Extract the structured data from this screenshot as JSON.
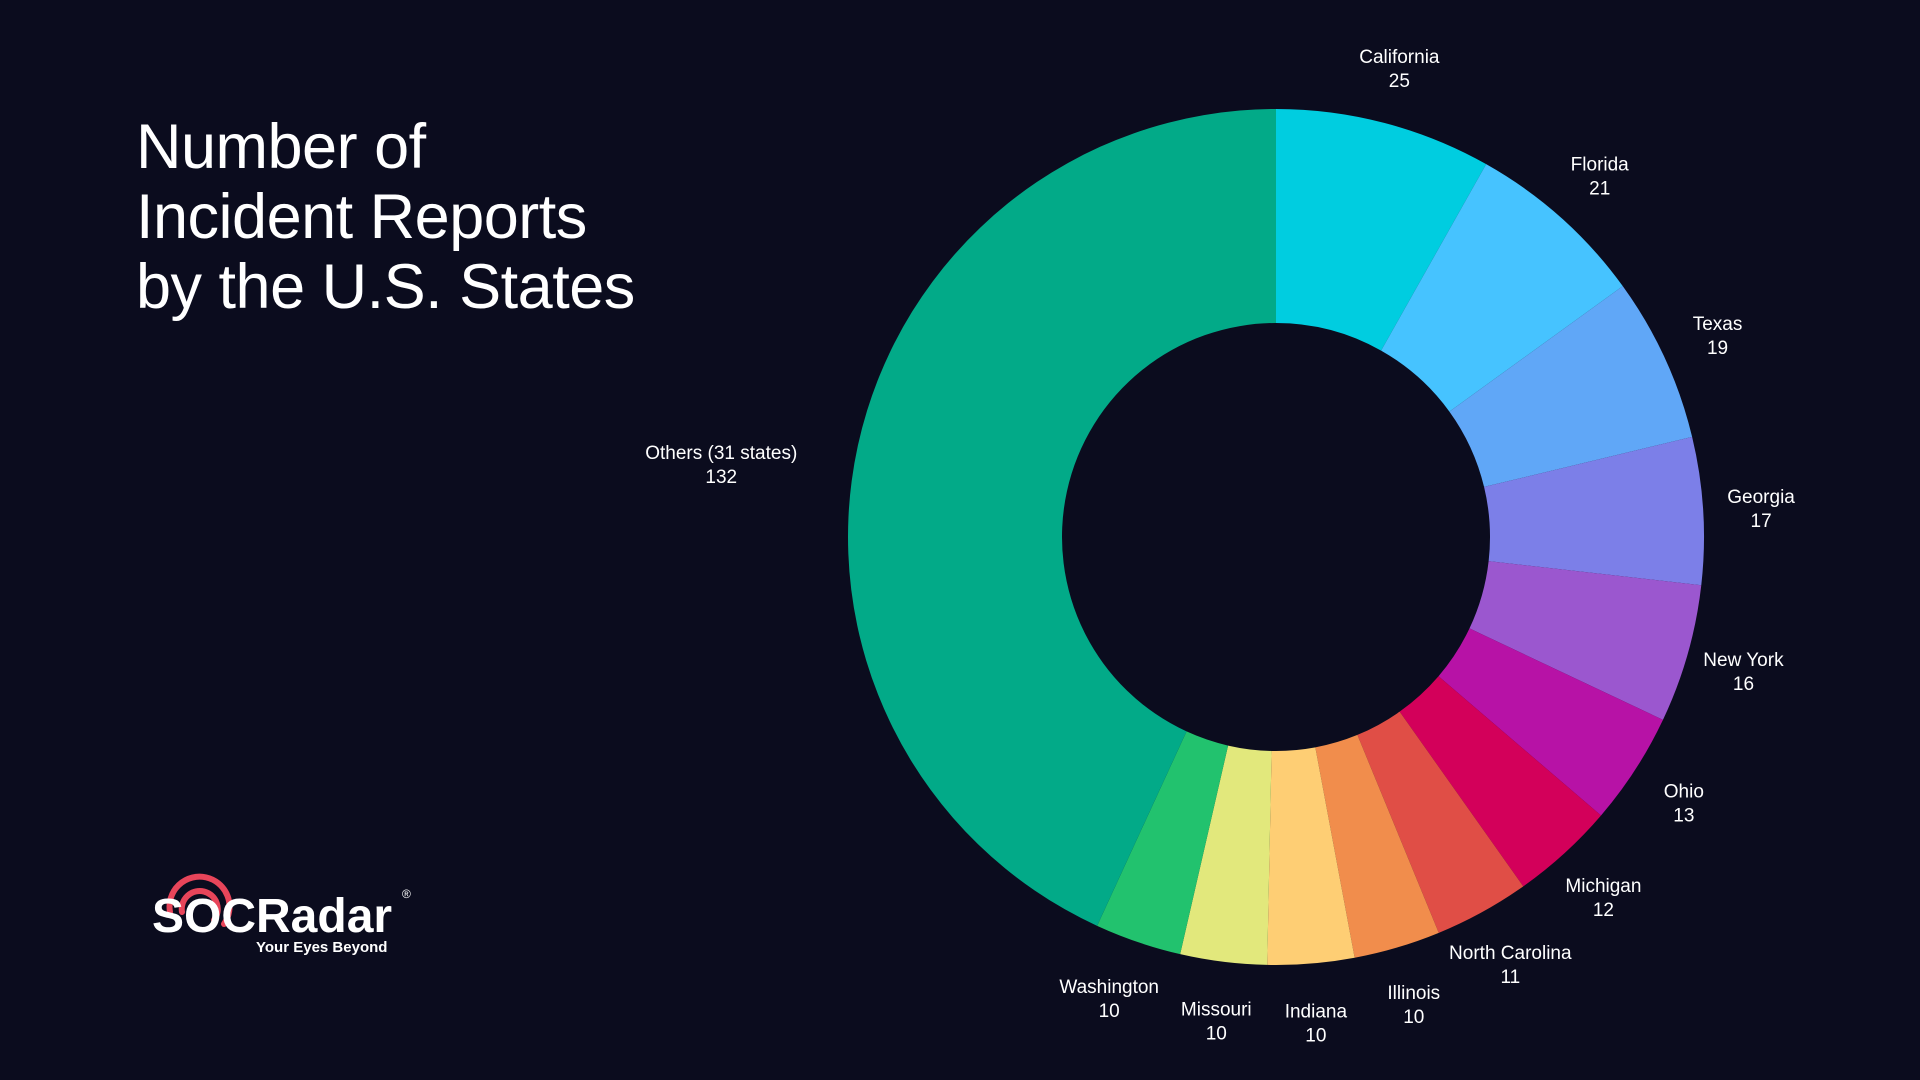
{
  "title_lines": [
    "Number of",
    "Incident Reports",
    "by the U.S. States"
  ],
  "logo": {
    "word": "SOCRadar",
    "tagline": "Your Eyes Beyond",
    "registered": "®",
    "accent_color": "#e8455a"
  },
  "background_color": "#0b0c1e",
  "chart_data": {
    "type": "pie",
    "style": "donut",
    "title": "Number of Incident Reports by the U.S. States",
    "slices": [
      {
        "label": "California",
        "value": 25,
        "color": "#00cde0"
      },
      {
        "label": "Florida",
        "value": 21,
        "color": "#46c3ff"
      },
      {
        "label": "Texas",
        "value": 19,
        "color": "#60a7f7"
      },
      {
        "label": "Georgia",
        "value": 17,
        "color": "#7c7fe8"
      },
      {
        "label": "New York",
        "value": 16,
        "color": "#9b57cf"
      },
      {
        "label": "Ohio",
        "value": 13,
        "color": "#b712a6"
      },
      {
        "label": "Michigan",
        "value": 12,
        "color": "#d3005a"
      },
      {
        "label": "North Carolina",
        "value": 11,
        "color": "#e04e46"
      },
      {
        "label": "Illinois",
        "value": 10,
        "color": "#f18d4c"
      },
      {
        "label": "Indiana",
        "value": 10,
        "color": "#fece74"
      },
      {
        "label": "Missouri",
        "value": 10,
        "color": "#e2e87c"
      },
      {
        "label": "Washington",
        "value": 10,
        "color": "#9be36f"
      },
      {
        "label": "Others (31 states)",
        "value": 132,
        "color": "#02aa88"
      }
    ],
    "washington_color_override": "#22c26e"
  }
}
